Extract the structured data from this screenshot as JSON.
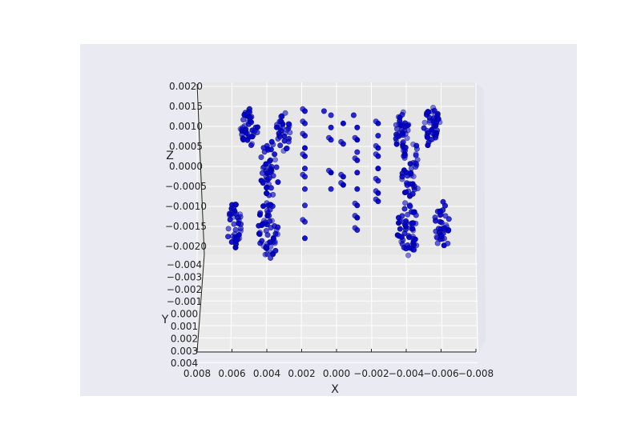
{
  "chart_data": {
    "type": "scatter",
    "projection": "3d",
    "style": "seaborn-darkgrid",
    "grid": true,
    "colors": {
      "axes_background": "#eaeaf2",
      "pane_back": "#e6e6e6",
      "pane_floor": "#ebebeb",
      "point": "#0000cc",
      "point_edge": "#00007a"
    },
    "xlabel": "X",
    "ylabel": "Y",
    "zlabel": "Z",
    "xlim": [
      0.008,
      -0.008
    ],
    "ylim": [
      -0.004,
      0.004
    ],
    "zlim": [
      -0.002,
      0.002
    ],
    "x_ticks": [
      "0.008",
      "0.006",
      "0.004",
      "0.002",
      "0.000",
      "−0.002",
      "−0.004",
      "−0.006",
      "−0.008"
    ],
    "y_ticks": [
      "−0.004",
      "−0.003",
      "−0.002",
      "−0.001",
      "0.000",
      "0.001",
      "0.002",
      "0.003",
      "0.004"
    ],
    "z_ticks": [
      "0.0020",
      "0.0015",
      "0.0010",
      "0.0005",
      "0.0000",
      "−0.0005",
      "−0.0010",
      "−0.0015",
      "−0.0020"
    ],
    "clusters": [
      {
        "x": 0.006,
        "y": -0.0021,
        "z": -0.0015,
        "rx": 0.00045,
        "rz": 0.0006,
        "n": 40
      },
      {
        "x": 0.004,
        "y": -0.0023,
        "z": -0.0016,
        "rx": 0.0006,
        "rz": 0.0007,
        "n": 55
      },
      {
        "x": 0.004,
        "y": -0.0006,
        "z": -0.0001,
        "rx": 0.0006,
        "rz": 0.0007,
        "n": 45
      },
      {
        "x": 0.0053,
        "y": 0.0016,
        "z": 0.0009,
        "rx": 0.0005,
        "rz": 0.0005,
        "n": 45
      },
      {
        "x": 0.0033,
        "y": 0.0015,
        "z": 0.0008,
        "rx": 0.0004,
        "rz": 0.0005,
        "n": 35
      },
      {
        "x": -0.004,
        "y": -0.0023,
        "z": -0.0016,
        "rx": 0.0006,
        "rz": 0.0007,
        "n": 55
      },
      {
        "x": -0.006,
        "y": -0.0021,
        "z": -0.0015,
        "rx": 0.00045,
        "rz": 0.0006,
        "n": 40
      },
      {
        "x": -0.0041,
        "y": -0.0006,
        "z": -0.0001,
        "rx": 0.0006,
        "rz": 0.0007,
        "n": 45
      },
      {
        "x": -0.0052,
        "y": 0.0016,
        "z": 0.0009,
        "rx": 0.0005,
        "rz": 0.0005,
        "n": 45
      },
      {
        "x": -0.0035,
        "y": 0.0015,
        "z": 0.0008,
        "rx": 0.0004,
        "rz": 0.0005,
        "n": 35
      }
    ],
    "rows": [
      {
        "x": 0.002,
        "z": [
          0.0013,
          0.001,
          0.0007,
          0.0004,
          0.0002,
          -0.0001,
          -0.0003,
          -0.0006,
          -0.001,
          -0.0014,
          -0.0018
        ]
      },
      {
        "x": 0.0005,
        "z": [
          0.0012,
          0.0009,
          0.0006,
          -0.0002,
          -0.0006
        ]
      },
      {
        "x": -0.0002,
        "z": [
          0.001,
          0.0005,
          -0.0003,
          -0.0005
        ]
      },
      {
        "x": -0.001,
        "z": [
          0.0009,
          0.0006,
          0.0003,
          0.0001,
          -0.0002,
          -0.0006,
          -0.001,
          -0.0013,
          -0.0016
        ]
      },
      {
        "x": -0.0022,
        "z": [
          0.001,
          0.0007,
          0.0004,
          0.0002,
          -0.0001,
          -0.0004,
          -0.0007,
          -0.0009
        ]
      },
      {
        "x": 0.0009,
        "z": [
          0.0013
        ]
      },
      {
        "x": -0.0008,
        "z": [
          0.0012
        ]
      }
    ]
  }
}
